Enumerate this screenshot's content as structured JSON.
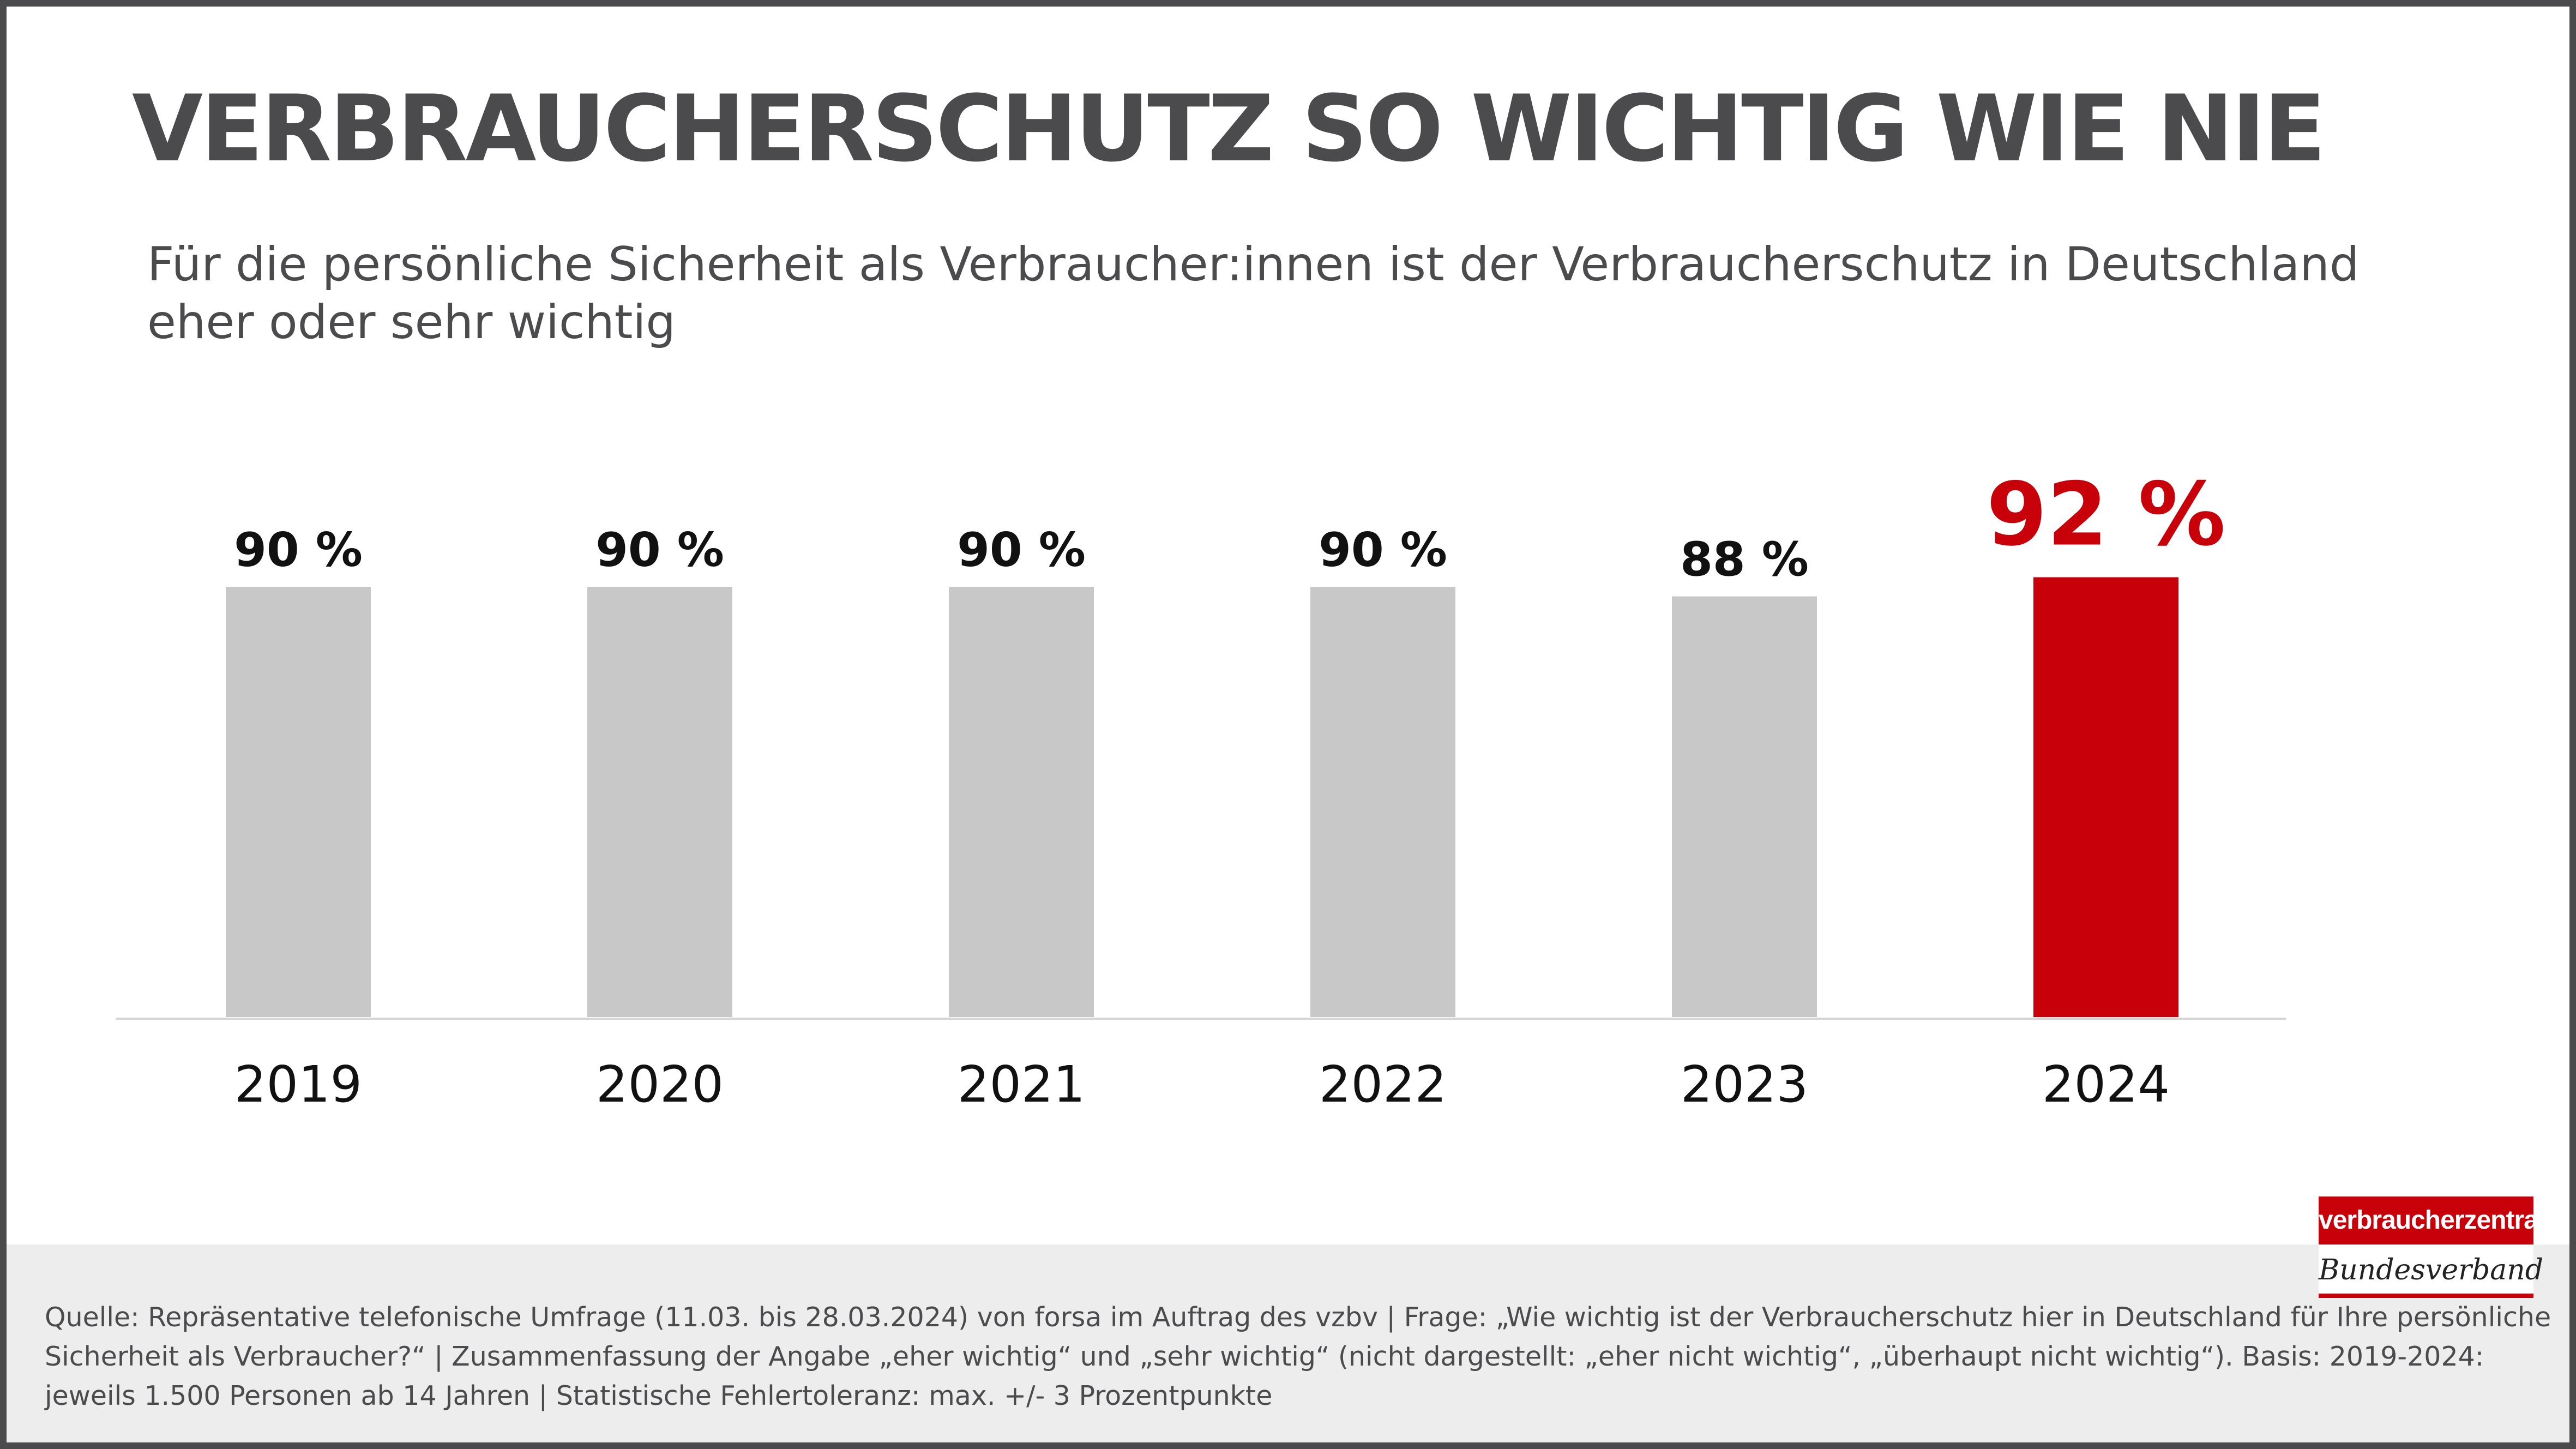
{
  "title": "VERBRAUCHERSCHUTZ SO WICHTIG WIE NIE",
  "subtitle": "Für die persönliche Sicherheit als Verbraucher:innen ist der Verbraucherschutz in Deutschland eher oder sehr wichtig",
  "source": "Quelle: Repräsentative telefonische Umfrage (11.03. bis 28.03.2024) von forsa im Auftrag des vzbv | Frage: „Wie wichtig ist der Verbraucherschutz hier in Deutschland für Ihre persönliche Sicherheit als Verbraucher?“ | Zusammenfassung der Angabe „eher wichtig“ und „sehr wichtig“ (nicht dargestellt: „eher nicht wichtig“, „überhaupt nicht wichtig“).  Basis: 2019-2024: jeweils 1.500 Personen ab 14 Jahren | Statistische Fehlertoleranz: max. +/- 3 Prozentpunkte",
  "logo": {
    "top": "verbraucherzentrale",
    "bottom": "Bundesverband"
  },
  "colors": {
    "bar_default": "#c8c8c8",
    "bar_highlight": "#c8000a",
    "label_default": "#111111",
    "label_highlight": "#c8000a",
    "text_gray": "#4b4b4d"
  },
  "chart_data": {
    "type": "bar",
    "categories": [
      "2019",
      "2020",
      "2021",
      "2022",
      "2023",
      "2024"
    ],
    "values": [
      90,
      90,
      90,
      90,
      88,
      92
    ],
    "data_labels": [
      "90 %",
      "90 %",
      "90 %",
      "90 %",
      "88 %",
      "92 %"
    ],
    "highlight_index": 5,
    "unit": "%",
    "ylim": [
      0,
      92
    ],
    "grid": false,
    "legend": "none"
  }
}
